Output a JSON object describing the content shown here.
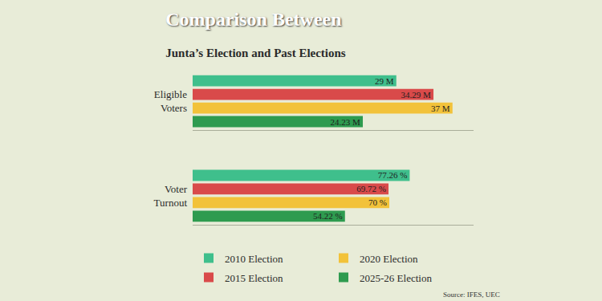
{
  "chart_data": [
    {
      "type": "bar",
      "orientation": "horizontal",
      "title": "Comparison Between",
      "subtitle": "Junta’s Election and Past Elections",
      "categories": [
        "Eligible Voters"
      ],
      "series": [
        {
          "name": "2010 Election",
          "color": "#3fbf8c",
          "values": [
            29
          ],
          "value_labels": [
            "29 M"
          ]
        },
        {
          "name": "2015 Election",
          "color": "#d94a4a",
          "values": [
            34.29
          ],
          "value_labels": [
            "34.29 M"
          ]
        },
        {
          "name": "2020 Election",
          "color": "#f2c23a",
          "values": [
            37
          ],
          "value_labels": [
            "37 M"
          ]
        },
        {
          "name": "2025-26 Election",
          "color": "#2e9b4f",
          "values": [
            24.23
          ],
          "value_labels": [
            "24.23 M"
          ]
        }
      ],
      "xlim": [
        0,
        40
      ],
      "data_labels": true,
      "tick_labels": "y",
      "grid": false,
      "legend": "bottom"
    },
    {
      "type": "bar",
      "orientation": "horizontal",
      "categories": [
        "Voter Turnout"
      ],
      "series": [
        {
          "name": "2010 Election",
          "color": "#3fbf8c",
          "values": [
            77.26
          ],
          "value_labels": [
            "77.26 %"
          ]
        },
        {
          "name": "2015 Election",
          "color": "#d94a4a",
          "values": [
            69.72
          ],
          "value_labels": [
            "69.72 %"
          ]
        },
        {
          "name": "2020 Election",
          "color": "#f2c23a",
          "values": [
            70
          ],
          "value_labels": [
            "70 %"
          ]
        },
        {
          "name": "2025-26 Election",
          "color": "#2e9b4f",
          "values": [
            54.22
          ],
          "value_labels": [
            "54.22 %"
          ]
        }
      ],
      "xlim": [
        0,
        100
      ],
      "data_labels": true,
      "tick_labels": "y",
      "grid": false,
      "legend": "bottom",
      "annotations": [
        "Source: IFES, UEC"
      ]
    }
  ]
}
